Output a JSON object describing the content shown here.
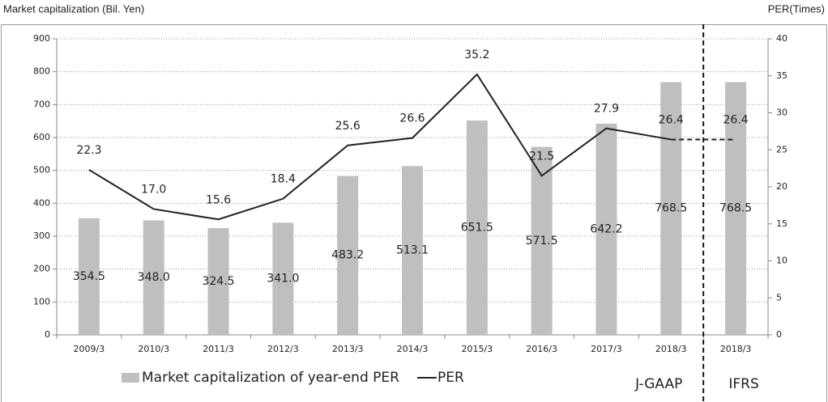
{
  "chart_data": {
    "type": "bar_line",
    "y_label": "Market capitalization (Bil. Yen)",
    "y2_label": "PER(Times)",
    "categories": [
      "2009/3",
      "2010/3",
      "2011/3",
      "2012/3",
      "2013/3",
      "2014/3",
      "2015/3",
      "2016/3",
      "2017/3",
      "2018/3",
      "2018/3"
    ],
    "series": [
      {
        "name": "Market capitalization of year-end  PER",
        "type": "bar",
        "axis": "y",
        "color": "#bfbfbf",
        "values": [
          354.5,
          348.0,
          324.5,
          341.0,
          483.2,
          513.1,
          651.5,
          571.5,
          642.2,
          768.5,
          768.5
        ],
        "value_labels": [
          "354.5",
          "348.0",
          "324.5",
          "341.0",
          "483.2",
          "513.1",
          "651.5",
          "571.5",
          "642.2",
          "768.5",
          "768.5"
        ]
      },
      {
        "name": "PER",
        "type": "line",
        "axis": "y2",
        "color": "#222222",
        "values": [
          22.3,
          17.0,
          15.6,
          18.4,
          25.6,
          26.6,
          35.2,
          21.5,
          27.9,
          26.4,
          26.4
        ],
        "value_labels": [
          "22.3",
          "17.0",
          "15.6",
          "18.4",
          "25.6",
          "26.6",
          "35.2",
          "21.5",
          "27.9",
          "26.4",
          "26.4"
        ],
        "dashed_last_segment": true
      }
    ],
    "sections": [
      "J-GAAP",
      "IFRS"
    ],
    "ylim": [
      0,
      900
    ],
    "yticks": [
      0,
      100,
      200,
      300,
      400,
      500,
      600,
      700,
      800,
      900
    ],
    "y2lim": [
      0,
      40
    ],
    "y2ticks": [
      0,
      5,
      10,
      15,
      20,
      25,
      30,
      35,
      40
    ],
    "grid": true
  }
}
